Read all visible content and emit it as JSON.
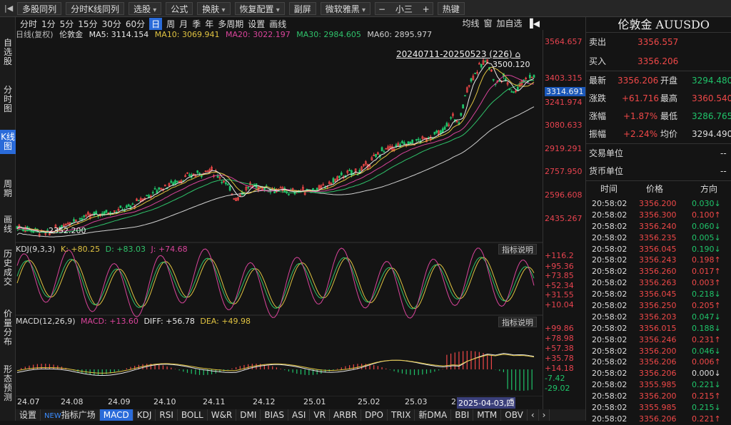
{
  "toolbar": {
    "items": [
      "多股同列",
      "分时K线同列",
      "选股",
      "公式",
      "换肤",
      "恢复配置",
      "副屏",
      "微软雅黑",
      "小三",
      "热键"
    ]
  },
  "left_nav": {
    "items": [
      "自选股",
      "分时图",
      "K线图",
      "周期",
      "画线",
      "历史成交",
      "价量分布",
      "形态预测"
    ]
  },
  "period_bar": {
    "items": [
      "分时",
      "1分",
      "5分",
      "15分",
      "30分",
      "60分",
      "日",
      "周",
      "月",
      "季",
      "年",
      "多周期",
      "设置",
      "画线"
    ],
    "selected": "日",
    "right": [
      "均线",
      "窗",
      "加自选"
    ]
  },
  "ma_bar": {
    "label": "日线(复权)",
    "name": "伦敦金",
    "ma5": "MA5: 3114.154",
    "ma10": "MA10: 3069.941",
    "ma20": "MA20: 3022.197",
    "ma30": "MA30: 2984.605",
    "ma60": "MA60: 2895.977"
  },
  "range_label": "20240711-20250523 (226)",
  "high_label": "3500.120",
  "low_label": "2352.200",
  "price_axis": [
    "3564.657",
    "3403.315",
    "3314.691",
    "3241.974",
    "3080.633",
    "2919.291",
    "2757.950",
    "2596.608",
    "2435.267"
  ],
  "kdj": {
    "title": "KDJ(9,3,3)",
    "k": "K: +80.25",
    "d": "D: +83.03",
    "j": "J: +74.68",
    "axis": [
      "+116.2",
      "+95.36",
      "+73.85",
      "+52.34",
      "+31.55",
      "+10.04"
    ],
    "explain": "指标说明"
  },
  "macd": {
    "title": "MACD(12,26,9)",
    "macd": "MACD: +13.60",
    "diff": "DIFF: +56.78",
    "dea": "DEA: +49.98",
    "axis": [
      "+99.86",
      "+78.98",
      "+57.38",
      "+35.78",
      "+14.18",
      "-7.42",
      "-29.02"
    ],
    "explain": "指标说明"
  },
  "dates": [
    "24.07",
    "24.08",
    "24.09",
    "24.10",
    "24.11",
    "24.12",
    "25.01",
    "25.02",
    "25.03",
    "2",
    "2025-04-03,四",
    "5"
  ],
  "bottom_tabs": [
    "设置",
    "NEW",
    "指标广场",
    "MACD",
    "KDJ",
    "RSI",
    "BOLL",
    "W&R",
    "DMI",
    "BIAS",
    "ASI",
    "VR",
    "ARBR",
    "DPO",
    "TRIX",
    "新DMA",
    "BBI",
    "MTM",
    "OBV"
  ],
  "quote": {
    "name": "伦敦金 AUUSDO",
    "sell_label": "卖出",
    "sell": "3356.557",
    "buy_label": "买入",
    "buy": "3356.206",
    "latest_label": "最新",
    "latest": "3356.206",
    "open_label": "开盘",
    "open": "3294.480",
    "change_label": "涨跌",
    "change": "+61.716",
    "high_label": "最高",
    "high": "3360.540",
    "pct_label": "涨幅",
    "pct": "+1.87%",
    "low_label": "最低",
    "low": "3286.765",
    "amp_label": "振幅",
    "amp": "+2.24%",
    "avg_label": "均价",
    "avg": "3294.490",
    "unit1_label": "交易单位",
    "unit1": "--",
    "unit2_label": "货币单位",
    "unit2": "--"
  },
  "ticks_header": [
    "时间",
    "价格",
    "方向"
  ],
  "ticks": [
    {
      "t": "20:58:02",
      "p": "3356.200",
      "v": "0.030",
      "d": "down"
    },
    {
      "t": "20:58:02",
      "p": "3356.300",
      "v": "0.100",
      "d": "up"
    },
    {
      "t": "20:58:02",
      "p": "3356.240",
      "v": "0.060",
      "d": "down"
    },
    {
      "t": "20:58:02",
      "p": "3356.235",
      "v": "0.005",
      "d": "down"
    },
    {
      "t": "20:58:02",
      "p": "3356.045",
      "v": "0.190",
      "d": "down"
    },
    {
      "t": "20:58:02",
      "p": "3356.243",
      "v": "0.198",
      "d": "up"
    },
    {
      "t": "20:58:02",
      "p": "3356.260",
      "v": "0.017",
      "d": "up"
    },
    {
      "t": "20:58:02",
      "p": "3356.263",
      "v": "0.003",
      "d": "up"
    },
    {
      "t": "20:58:02",
      "p": "3356.045",
      "v": "0.218",
      "d": "down"
    },
    {
      "t": "20:58:02",
      "p": "3356.250",
      "v": "0.205",
      "d": "up"
    },
    {
      "t": "20:58:02",
      "p": "3356.203",
      "v": "0.047",
      "d": "down"
    },
    {
      "t": "20:58:02",
      "p": "3356.015",
      "v": "0.188",
      "d": "down"
    },
    {
      "t": "20:58:02",
      "p": "3356.246",
      "v": "0.231",
      "d": "up"
    },
    {
      "t": "20:58:02",
      "p": "3356.200",
      "v": "0.046",
      "d": "down"
    },
    {
      "t": "20:58:02",
      "p": "3356.206",
      "v": "0.006",
      "d": "up"
    },
    {
      "t": "20:58:02",
      "p": "3356.206",
      "v": "0.000",
      "d": "flat"
    },
    {
      "t": "20:58:02",
      "p": "3355.985",
      "v": "0.221",
      "d": "down"
    },
    {
      "t": "20:58:02",
      "p": "3356.200",
      "v": "0.215",
      "d": "up"
    },
    {
      "t": "20:58:02",
      "p": "3355.985",
      "v": "0.215",
      "d": "down"
    },
    {
      "t": "20:58:02",
      "p": "3356.206",
      "v": "0.221",
      "d": "up"
    }
  ],
  "colors": {
    "up": "#f04848",
    "down": "#1fc46a",
    "ma5": "#e8e8e8",
    "ma10": "#e0c341",
    "ma20": "#d9449b",
    "ma30": "#2fc36b",
    "ma60": "#cfcfcf",
    "bg": "#141414"
  }
}
